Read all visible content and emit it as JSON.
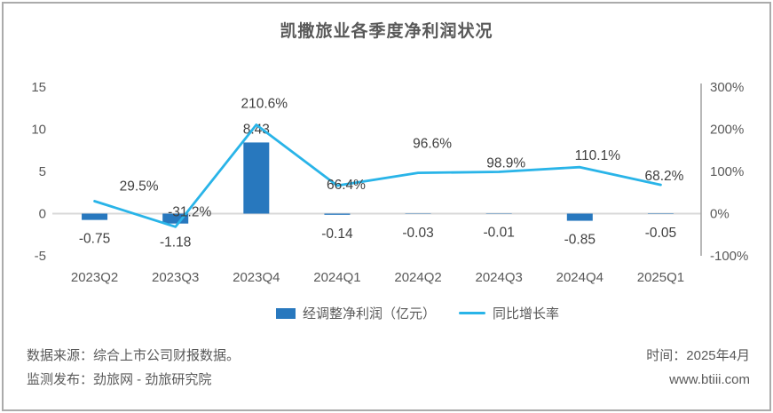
{
  "title": "凯撒旅业各季度净利润状况",
  "colors": {
    "bar": "#2878BE",
    "line": "#29B4E8",
    "title_text": "#595959",
    "axis_text": "#595959",
    "label_text": "#3F3F3F",
    "border": "#ABABAB",
    "zero_line": "#D9D9D9",
    "axis_line": "#A6A6A6"
  },
  "chart_data": {
    "type": "combo",
    "title": "凯撒旅业各季度净利润状况",
    "categories": [
      "2023Q2",
      "2023Q3",
      "2023Q4",
      "2024Q1",
      "2024Q2",
      "2024Q3",
      "2024Q4",
      "2025Q1"
    ],
    "series": [
      {
        "name": "经调整净利润（亿元）",
        "type": "bar",
        "axis": "left",
        "color": "#2878BE",
        "values": [
          -0.75,
          -1.18,
          8.43,
          -0.14,
          -0.03,
          -0.01,
          -0.85,
          -0.05
        ],
        "labels": [
          "-0.75",
          "-1.18",
          "8.43",
          "-0.14",
          "-0.03",
          "-0.01",
          "-0.85",
          "-0.05"
        ]
      },
      {
        "name": "同比增长率",
        "type": "line",
        "axis": "right",
        "color": "#29B4E8",
        "values": [
          29.5,
          -31.2,
          210.6,
          66.4,
          96.6,
          98.9,
          110.1,
          68.2
        ],
        "labels": [
          "29.5%",
          "-31.2%",
          "210.6%",
          "66.4%",
          "96.6%",
          "98.9%",
          "110.1%",
          "68.2%"
        ]
      }
    ],
    "left_axis": {
      "min": -5,
      "max": 15,
      "ticks": [
        15,
        10,
        5,
        0,
        -5
      ]
    },
    "right_axis": {
      "min": -100,
      "max": 300,
      "ticks": [
        300,
        200,
        100,
        0,
        -100
      ],
      "suffix": "%"
    },
    "grid": "zero-line-only",
    "legend_position": "bottom"
  },
  "footer": {
    "source_line": "数据来源：综合上市公司财报数据。",
    "publish_line": "监测发布：劲旅网 - 劲旅研究院",
    "time_line": "时间：2025年4月",
    "website": "www.btiii.com"
  }
}
